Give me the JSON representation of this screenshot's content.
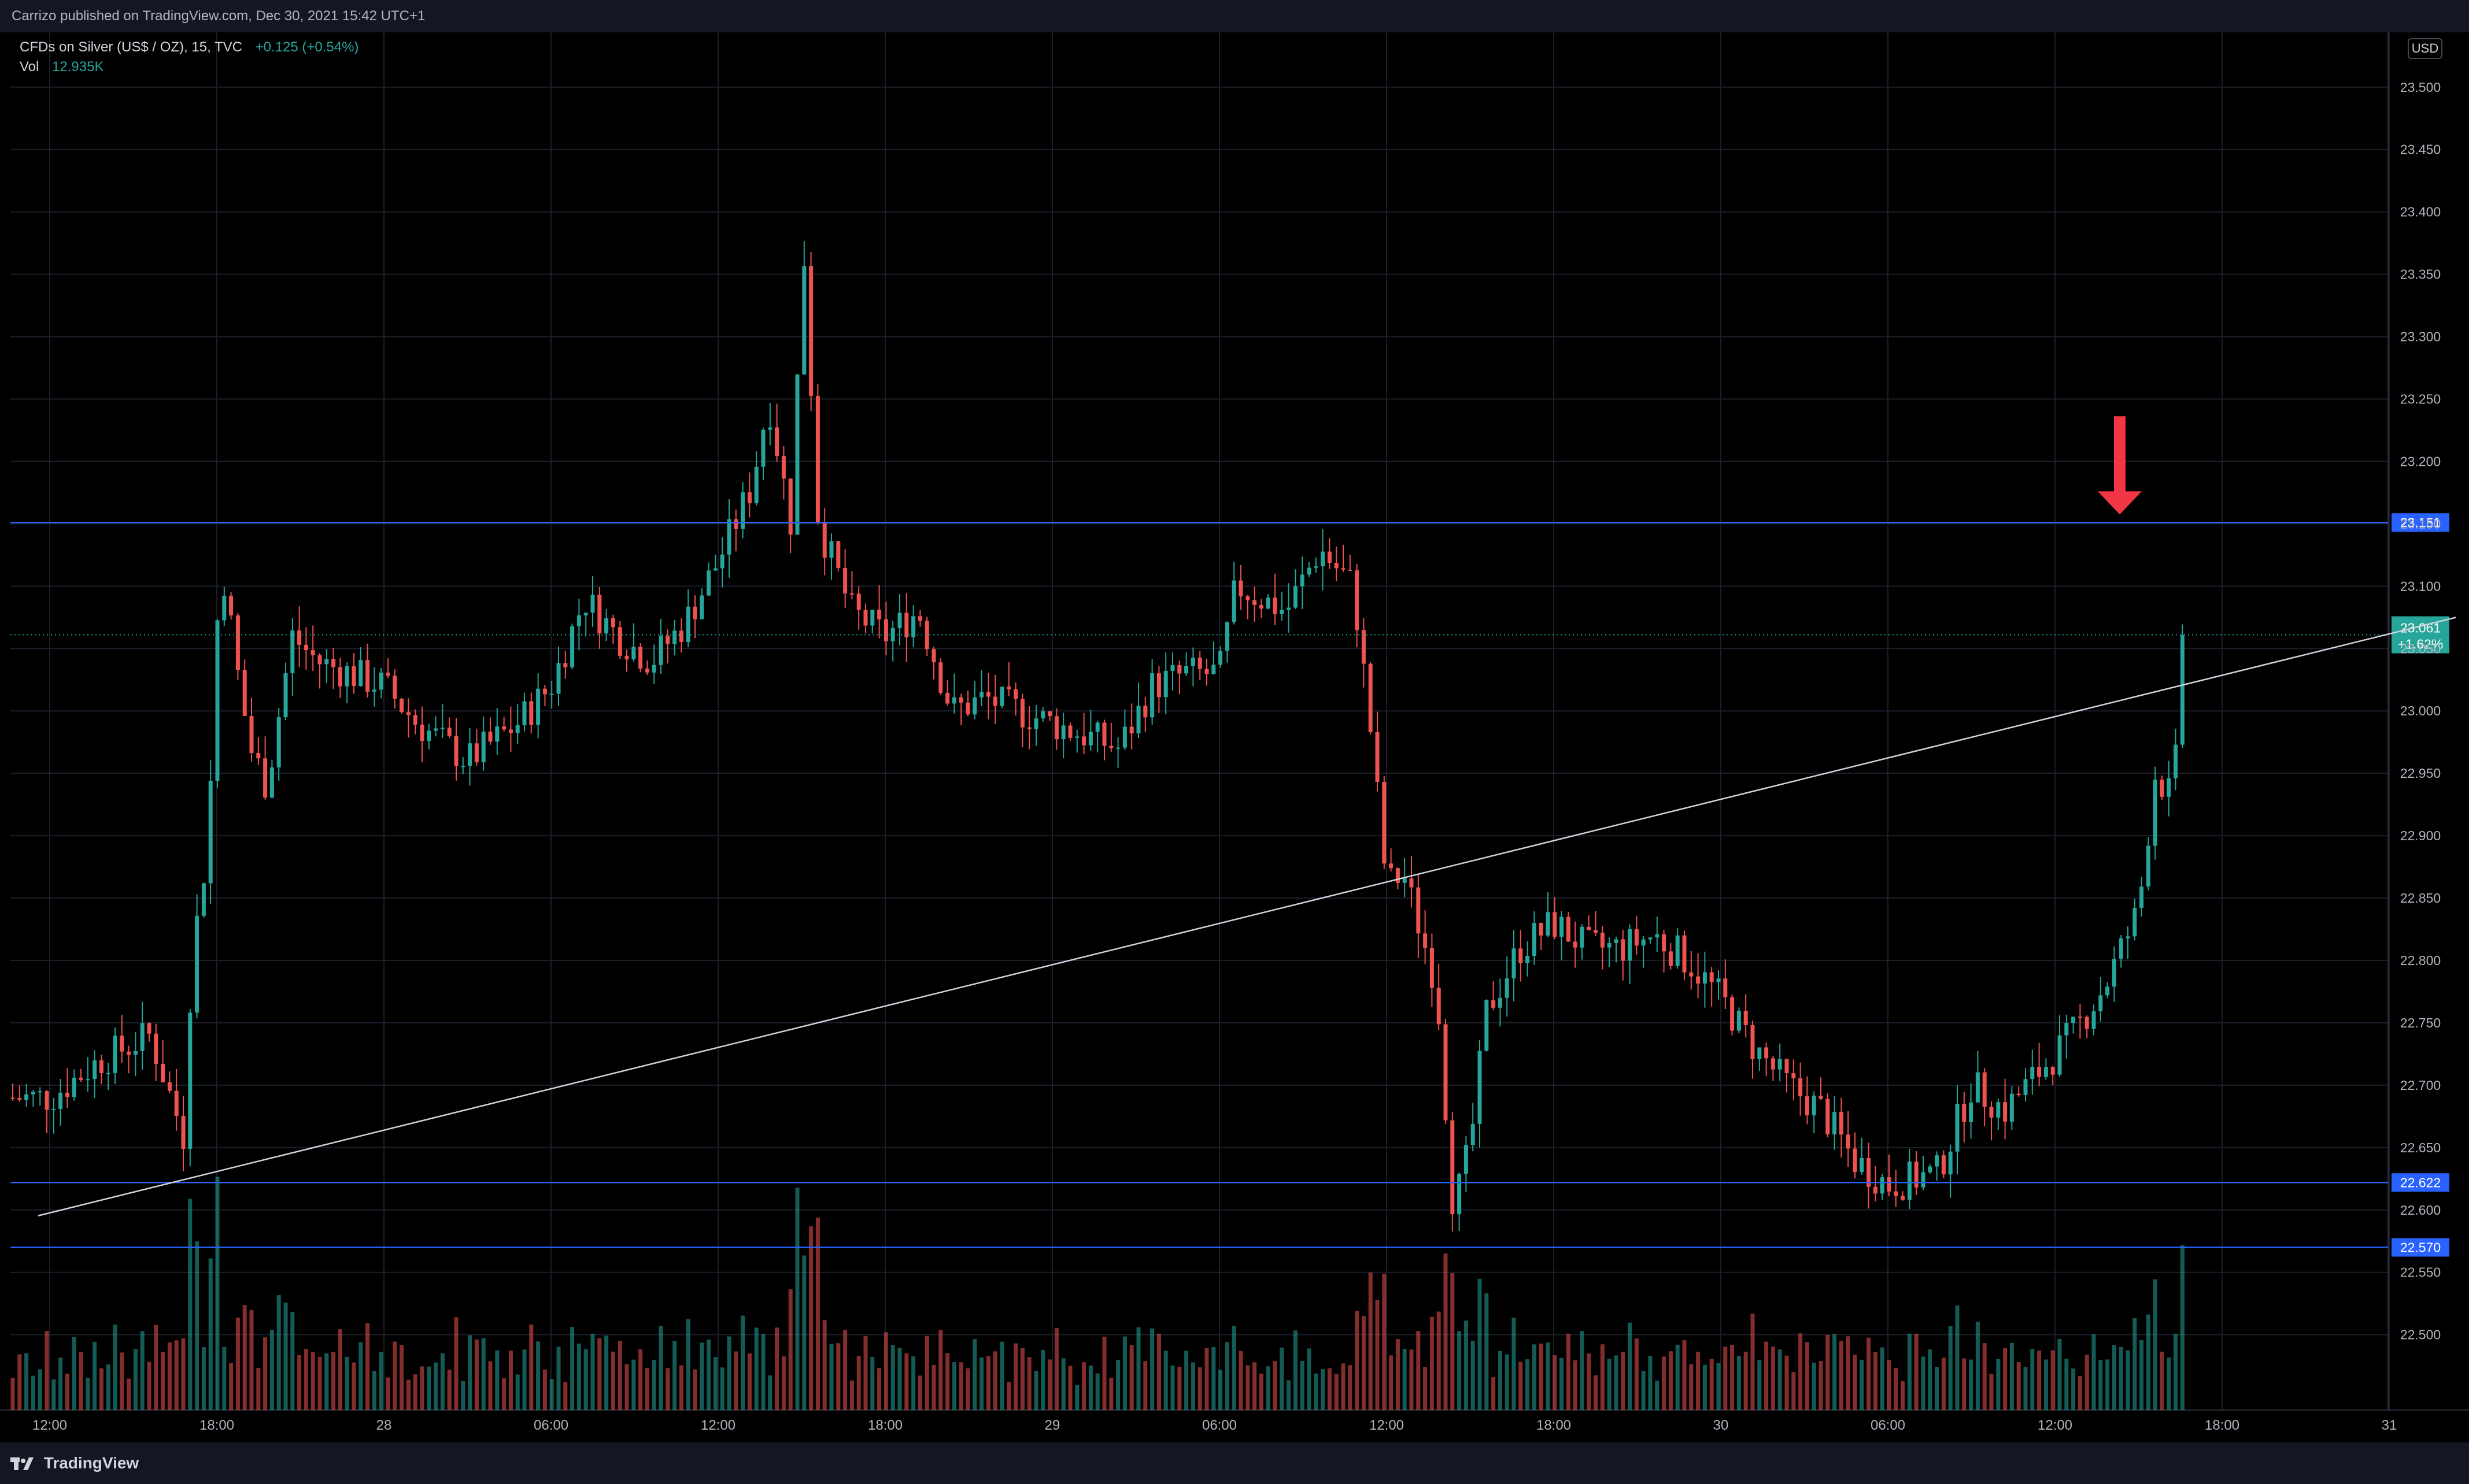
{
  "header": {
    "published_text": "Carrizo published on TradingView.com, Dec 30, 2021 15:42 UTC+1"
  },
  "legend": {
    "symbol": "CFDs on Silver (US$ / OZ), 15, TVC",
    "change": "+0.125 (+0.54%)",
    "vol_label": "Vol",
    "vol_value": "12.935K"
  },
  "currency_badge": "USD",
  "footer": {
    "brand": "TradingView"
  },
  "colors": {
    "up": "#26a69a",
    "down": "#ef5350",
    "hline": "#2962ff",
    "trendline": "#d1d4dc",
    "arrow": "#f23645"
  },
  "chart_data": {
    "type": "candlestick",
    "interval": "15",
    "y_axis": {
      "side": "right",
      "range": [
        22.46,
        23.53
      ],
      "ticks": [
        "23.500",
        "23.450",
        "23.400",
        "23.350",
        "23.300",
        "23.250",
        "23.200",
        "23.150",
        "23.100",
        "23.050",
        "23.000",
        "22.950",
        "22.900",
        "22.850",
        "22.800",
        "22.750",
        "22.700",
        "22.650",
        "22.600",
        "22.550",
        "22.500"
      ]
    },
    "x_axis": {
      "ticks": [
        "12:00",
        "18:00",
        "28",
        "06:00",
        "12:00",
        "18:00",
        "29",
        "06:00",
        "12:00",
        "18:00",
        "30",
        "06:00",
        "12:00",
        "18:00",
        "31"
      ]
    },
    "price_levels": [
      {
        "label": "23.151",
        "value": 23.151
      },
      {
        "label": "22.622",
        "value": 22.622
      },
      {
        "label": "22.570",
        "value": 22.57
      }
    ],
    "last_price": {
      "label": "23.061",
      "change": "+1.62%",
      "value": 23.061
    },
    "trendline": {
      "from": {
        "tick_index": 0,
        "value": 22.6
      },
      "to": {
        "tick_index": 14.4,
        "value": 23.075
      }
    },
    "annotation": {
      "shape": "down-arrow",
      "at_value": 23.151
    },
    "price_path": [
      [
        0,
        22.69
      ],
      [
        0.3,
        22.72
      ],
      [
        0.6,
        22.74
      ],
      [
        0.8,
        22.66
      ],
      [
        0.85,
        22.8
      ],
      [
        0.95,
        22.9
      ],
      [
        1.0,
        23.07
      ],
      [
        1.05,
        23.11
      ],
      [
        1.1,
        23.05
      ],
      [
        1.2,
        22.97
      ],
      [
        1.3,
        22.94
      ],
      [
        1.45,
        23.06
      ],
      [
        1.6,
        23.04
      ],
      [
        1.8,
        23.03
      ],
      [
        2.0,
        23.02
      ],
      [
        2.2,
        22.99
      ],
      [
        2.5,
        22.96
      ],
      [
        2.8,
        22.99
      ],
      [
        3.0,
        23.02
      ],
      [
        3.2,
        23.09
      ],
      [
        3.4,
        23.06
      ],
      [
        3.6,
        23.04
      ],
      [
        3.8,
        23.07
      ],
      [
        4.0,
        23.12
      ],
      [
        4.2,
        23.18
      ],
      [
        4.3,
        23.25
      ],
      [
        4.45,
        23.14
      ],
      [
        4.5,
        23.4
      ],
      [
        4.6,
        23.15
      ],
      [
        4.8,
        23.08
      ],
      [
        5.0,
        23.06
      ],
      [
        5.2,
        23.08
      ],
      [
        5.4,
        23.0
      ],
      [
        5.6,
        23.01
      ],
      [
        5.8,
        23.0
      ],
      [
        6.0,
        22.99
      ],
      [
        6.2,
        22.98
      ],
      [
        6.4,
        22.97
      ],
      [
        6.6,
        23.02
      ],
      [
        6.8,
        23.03
      ],
      [
        7.0,
        23.03
      ],
      [
        7.1,
        23.1
      ],
      [
        7.4,
        23.08
      ],
      [
        7.6,
        23.13
      ],
      [
        7.8,
        23.1
      ],
      [
        7.9,
        22.99
      ],
      [
        8.0,
        22.86
      ],
      [
        8.1,
        22.87
      ],
      [
        8.3,
        22.78
      ],
      [
        8.4,
        22.6
      ],
      [
        8.5,
        22.65
      ],
      [
        8.6,
        22.76
      ],
      [
        8.8,
        22.81
      ],
      [
        9.0,
        22.83
      ],
      [
        9.2,
        22.81
      ],
      [
        9.4,
        22.81
      ],
      [
        9.6,
        22.82
      ],
      [
        9.8,
        22.8
      ],
      [
        10.0,
        22.77
      ],
      [
        10.2,
        22.73
      ],
      [
        10.4,
        22.7
      ],
      [
        10.6,
        22.68
      ],
      [
        10.8,
        22.64
      ],
      [
        11.0,
        22.62
      ],
      [
        11.3,
        22.63
      ],
      [
        11.5,
        22.7
      ],
      [
        11.7,
        22.68
      ],
      [
        11.9,
        22.71
      ],
      [
        12.1,
        22.74
      ],
      [
        12.3,
        22.78
      ],
      [
        12.5,
        22.84
      ],
      [
        12.6,
        22.95
      ],
      [
        12.7,
        22.93
      ],
      [
        12.8,
        23.061
      ]
    ],
    "volume": {
      "last": "12.935K"
    }
  }
}
